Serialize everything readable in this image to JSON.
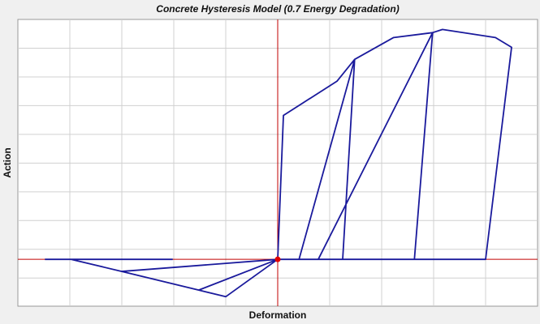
{
  "chart_data": {
    "type": "line",
    "title": "Concrete Hysteresis Model (0.7 Energy Degradation)",
    "x_label": "Deformation",
    "y_label": "Action",
    "xlim": [
      -5,
      5
    ],
    "ylim": [
      -1.63,
      8.35
    ],
    "xticks": [
      -4,
      -3,
      -2,
      -1,
      1,
      2,
      3,
      4
    ],
    "yticks": [
      -0.65,
      0.35,
      1.35,
      2.35,
      3.35,
      4.35,
      5.35,
      6.35,
      7.35
    ],
    "grid": true,
    "series": [
      {
        "color": "#1a1a9c",
        "x": [
          -4.48,
          -2.02,
          null,
          -3.98,
          -3.0,
          0,
          -1.52,
          -1.0,
          0,
          null,
          -3.0,
          -1.52,
          null,
          0,
          0.11,
          1.14,
          1.48,
          0.41,
          null,
          1.48,
          1.25,
          0.78,
          2.98,
          2.63,
          null,
          1.48,
          2.23,
          2.98,
          3.17,
          4.19,
          4.5,
          4.0,
          0
        ],
        "values": [
          0,
          0,
          null,
          0,
          -0.42,
          0,
          -1.07,
          -1.3,
          0,
          null,
          -0.42,
          -1.07,
          null,
          0,
          5.01,
          6.2,
          6.96,
          0,
          null,
          6.96,
          0,
          0,
          7.89,
          0,
          null,
          6.96,
          7.72,
          7.89,
          8.0,
          7.72,
          7.38,
          0,
          0
        ]
      }
    ]
  }
}
